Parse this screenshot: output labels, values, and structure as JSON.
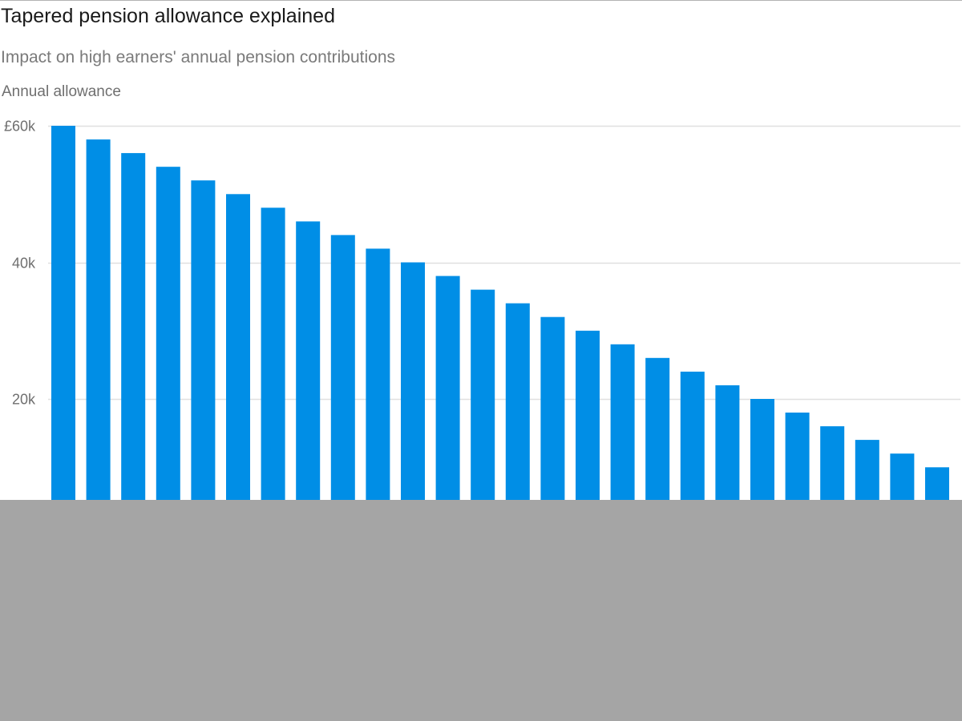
{
  "title": "Tapered pension allowance explained",
  "subtitle": "Impact on high earners' annual pension contributions",
  "colors": {
    "bar": "#008ee6",
    "gridline": "#e0e0e0",
    "top_rule": "#b3b3b3",
    "tick_label": "#6f6f6f",
    "overlay": "#a5a5a5"
  },
  "chart_data": {
    "type": "bar",
    "title": "Tapered pension allowance explained",
    "subtitle": "Impact on high earners' annual pension contributions",
    "ylabel": "Annual allowance",
    "xlabel": "",
    "ylim": [
      0,
      60000
    ],
    "yticks": [
      {
        "value": 20000,
        "label": "20k"
      },
      {
        "value": 40000,
        "label": "40k"
      },
      {
        "value": 60000,
        "label": "£60k"
      }
    ],
    "grid": true,
    "legend": "none",
    "values": [
      60000,
      58000,
      56000,
      54000,
      52000,
      50000,
      48000,
      46000,
      44000,
      42000,
      40000,
      38000,
      36000,
      34000,
      32000,
      30000,
      28000,
      26000,
      24000,
      22000,
      20000,
      18000,
      16000,
      14000,
      12000,
      10000
    ],
    "note": "Lower portion of the chart (below roughly 8k) is hidden behind a grey overlay"
  }
}
